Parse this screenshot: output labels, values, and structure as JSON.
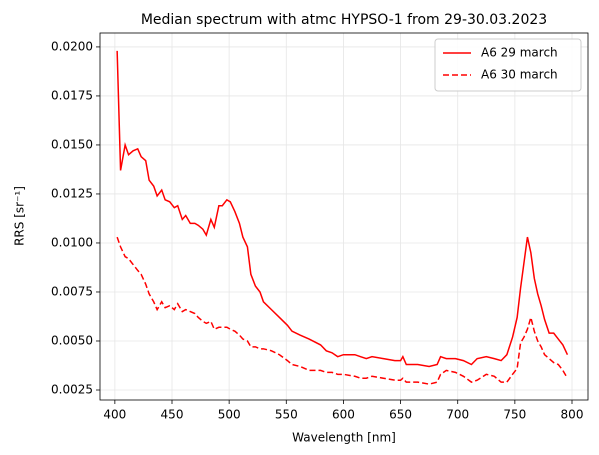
{
  "chart_data": {
    "type": "line",
    "title": "Median spectrum with atmc HYPSO-1 from 29-30.03.2023",
    "xlabel": "Wavelength [nm]",
    "ylabel": "RRS [sr⁻¹]",
    "x": [
      402,
      405,
      409,
      412,
      416,
      420,
      423,
      427,
      430,
      434,
      437,
      441,
      444,
      448,
      452,
      455,
      459,
      462,
      466,
      470,
      473,
      477,
      480,
      484,
      487,
      491,
      494,
      498,
      501,
      505,
      509,
      512,
      516,
      519,
      523,
      527,
      530,
      537,
      544,
      551,
      555,
      562,
      570,
      580,
      585,
      590,
      595,
      600,
      610,
      615,
      620,
      625,
      635,
      645,
      650,
      652,
      655,
      665,
      675,
      682,
      685,
      690,
      698,
      705,
      712,
      717,
      725,
      732,
      738,
      743,
      748,
      752,
      755,
      758,
      761,
      764,
      767,
      770,
      773,
      776,
      780,
      784,
      788,
      792,
      796
    ],
    "series": [
      {
        "name": "A6 29 march",
        "color": "#ff0000",
        "linestyle": "solid",
        "values": [
          0.0198,
          0.0137,
          0.015,
          0.0145,
          0.0147,
          0.0148,
          0.0144,
          0.0142,
          0.0132,
          0.0129,
          0.0124,
          0.0127,
          0.0122,
          0.0121,
          0.0118,
          0.0119,
          0.0112,
          0.0114,
          0.011,
          0.011,
          0.0109,
          0.0107,
          0.0104,
          0.0112,
          0.0108,
          0.0119,
          0.0119,
          0.0122,
          0.0121,
          0.0116,
          0.011,
          0.0103,
          0.0098,
          0.0084,
          0.0078,
          0.0075,
          0.007,
          0.0066,
          0.0062,
          0.0058,
          0.0055,
          0.0053,
          0.0051,
          0.0048,
          0.0045,
          0.0044,
          0.0042,
          0.0043,
          0.0043,
          0.0042,
          0.0041,
          0.0042,
          0.0041,
          0.004,
          0.004,
          0.0042,
          0.0038,
          0.0038,
          0.0037,
          0.0038,
          0.0042,
          0.0041,
          0.0041,
          0.004,
          0.0038,
          0.0041,
          0.0042,
          0.0041,
          0.004,
          0.0043,
          0.0052,
          0.0062,
          0.0077,
          0.009,
          0.0103,
          0.0095,
          0.0082,
          0.0074,
          0.0068,
          0.0061,
          0.0054,
          0.0054,
          0.0051,
          0.0048,
          0.0043
        ]
      },
      {
        "name": "A6 30 march",
        "color": "#ff0000",
        "linestyle": "dashed",
        "values": [
          0.0103,
          0.0098,
          0.0093,
          0.0092,
          0.0089,
          0.0086,
          0.0084,
          0.0079,
          0.0074,
          0.007,
          0.0066,
          0.007,
          0.0067,
          0.0068,
          0.0066,
          0.0069,
          0.0065,
          0.0066,
          0.0065,
          0.0064,
          0.0062,
          0.006,
          0.0059,
          0.006,
          0.0056,
          0.0057,
          0.0057,
          0.0057,
          0.0056,
          0.0055,
          0.0053,
          0.0051,
          0.005,
          0.0047,
          0.0047,
          0.0046,
          0.0046,
          0.0045,
          0.0043,
          0.004,
          0.0038,
          0.0037,
          0.0035,
          0.0035,
          0.0034,
          0.0034,
          0.0033,
          0.0033,
          0.0032,
          0.0031,
          0.0031,
          0.0032,
          0.0031,
          0.003,
          0.003,
          0.0031,
          0.0029,
          0.0029,
          0.0028,
          0.0029,
          0.0033,
          0.0035,
          0.0034,
          0.0032,
          0.0029,
          0.003,
          0.0033,
          0.0032,
          0.0029,
          0.0029,
          0.0033,
          0.0036,
          0.0049,
          0.0052,
          0.0056,
          0.0062,
          0.0055,
          0.005,
          0.0047,
          0.0043,
          0.0041,
          0.0039,
          0.0038,
          0.0035,
          0.0031
        ]
      }
    ],
    "xlim": [
      387,
      814
    ],
    "ylim": [
      0.00199,
      0.02071
    ],
    "xticks": [
      400,
      450,
      500,
      550,
      600,
      650,
      700,
      750,
      800
    ],
    "yticks": [
      0.0025,
      {
        "value": 0.005,
        "label": "0.0050"
      },
      0.0075,
      {
        "value": 0.01,
        "label": "0.0100"
      },
      0.0125,
      {
        "value": 0.015,
        "label": "0.0150"
      },
      0.0175,
      {
        "value": 0.02,
        "label": "0.0200"
      }
    ],
    "grid": true,
    "legend": "upper right"
  }
}
